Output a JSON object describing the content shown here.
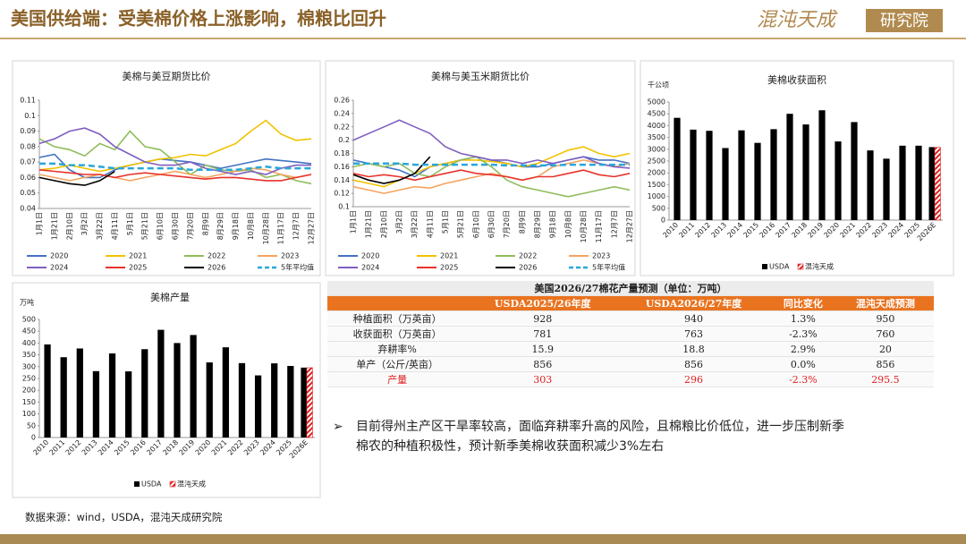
{
  "header": {
    "title": "美国供给端：受美棉价格上涨影响，棉粮比回升",
    "logo": "混沌天成",
    "logo_tag": "研究院"
  },
  "chart_data": [
    {
      "type": "line",
      "title": "美棉与美豆期货比价",
      "categories": [
        "1月1日",
        "1月21日",
        "2月10日",
        "3月2日",
        "3月22日",
        "4月11日",
        "5月1日",
        "5月21日",
        "6月10日",
        "6月30日",
        "7月20日",
        "8月9日",
        "8月29日",
        "9月18日",
        "10月8日",
        "10月28日",
        "11月17日",
        "12月7日",
        "12月27日"
      ],
      "ylim": [
        0.04,
        0.11
      ],
      "yticks": [
        0.04,
        0.05,
        0.06,
        0.07,
        0.08,
        0.09,
        0.1,
        0.11
      ],
      "series": [
        {
          "name": "2020",
          "color": "#4472c4",
          "values": [
            0.073,
            0.075,
            0.065,
            0.06,
            0.06,
            0.065,
            0.068,
            0.07,
            0.072,
            0.071,
            0.07,
            0.068,
            0.066,
            0.068,
            0.07,
            0.072,
            0.071,
            0.07,
            0.069
          ]
        },
        {
          "name": "2021",
          "color": "#f2c200",
          "values": [
            0.065,
            0.066,
            0.068,
            0.066,
            0.064,
            0.066,
            0.068,
            0.07,
            0.072,
            0.073,
            0.075,
            0.074,
            0.078,
            0.082,
            0.09,
            0.097,
            0.088,
            0.084,
            0.085
          ]
        },
        {
          "name": "2022",
          "color": "#8fbc5a",
          "values": [
            0.085,
            0.08,
            0.078,
            0.074,
            0.082,
            0.078,
            0.09,
            0.08,
            0.078,
            0.07,
            0.062,
            0.068,
            0.065,
            0.064,
            0.065,
            0.06,
            0.062,
            0.058,
            0.056
          ]
        },
        {
          "name": "2023",
          "color": "#f4a460",
          "values": [
            0.062,
            0.06,
            0.058,
            0.06,
            0.062,
            0.06,
            0.058,
            0.06,
            0.062,
            0.064,
            0.062,
            0.06,
            0.062,
            0.064,
            0.066,
            0.065,
            0.062,
            0.06,
            0.062
          ]
        },
        {
          "name": "2024",
          "color": "#7f5fbf",
          "values": [
            0.082,
            0.085,
            0.09,
            0.092,
            0.088,
            0.08,
            0.075,
            0.07,
            0.068,
            0.068,
            0.07,
            0.066,
            0.064,
            0.062,
            0.064,
            0.062,
            0.066,
            0.068,
            0.068
          ]
        },
        {
          "name": "2025",
          "color": "#e8322b",
          "values": [
            0.065,
            0.064,
            0.063,
            0.062,
            0.062,
            0.06,
            0.062,
            0.063,
            0.062,
            0.061,
            0.06,
            0.059,
            0.06,
            0.06,
            0.059,
            0.058,
            0.058,
            0.06,
            0.062
          ]
        },
        {
          "name": "2026",
          "color": "#000000",
          "values": [
            0.06,
            0.058,
            0.056,
            0.055,
            0.058,
            0.064,
            null,
            null,
            null,
            null,
            null,
            null,
            null,
            null,
            null,
            null,
            null,
            null,
            null
          ]
        },
        {
          "name": "5年平均值",
          "color": "#2aa6d9",
          "dashed": true,
          "values": [
            0.069,
            0.069,
            0.068,
            0.068,
            0.067,
            0.066,
            0.066,
            0.066,
            0.066,
            0.066,
            0.065,
            0.065,
            0.065,
            0.065,
            0.066,
            0.067,
            0.066,
            0.066,
            0.066
          ]
        }
      ]
    },
    {
      "type": "line",
      "title": "美棉与美玉米期货比价",
      "categories": [
        "1月1日",
        "1月21日",
        "2月10日",
        "3月2日",
        "3月22日",
        "4月11日",
        "5月1日",
        "5月21日",
        "6月10日",
        "6月30日",
        "7月20日",
        "8月9日",
        "8月29日",
        "9月18日",
        "10月8日",
        "10月28日",
        "11月17日",
        "12月7日",
        "12月27日"
      ],
      "ylim": [
        0.1,
        0.26
      ],
      "yticks": [
        0.1,
        0.12,
        0.14,
        0.16,
        0.18,
        0.2,
        0.22,
        0.24,
        0.26
      ],
      "series": [
        {
          "name": "2020",
          "color": "#4472c4",
          "values": [
            0.17,
            0.165,
            0.16,
            0.155,
            0.145,
            0.16,
            0.165,
            0.17,
            0.175,
            0.17,
            0.165,
            0.16,
            0.16,
            0.165,
            0.17,
            0.175,
            0.17,
            0.17,
            0.165
          ]
        },
        {
          "name": "2021",
          "color": "#f2c200",
          "values": [
            0.14,
            0.135,
            0.13,
            0.14,
            0.15,
            0.16,
            0.165,
            0.17,
            0.17,
            0.168,
            0.165,
            0.16,
            0.165,
            0.175,
            0.185,
            0.19,
            0.18,
            0.175,
            0.18
          ]
        },
        {
          "name": "2022",
          "color": "#8fbc5a",
          "values": [
            0.16,
            0.165,
            0.16,
            0.165,
            0.15,
            0.145,
            0.16,
            0.17,
            0.175,
            0.16,
            0.14,
            0.13,
            0.125,
            0.12,
            0.115,
            0.12,
            0.125,
            0.13,
            0.125
          ]
        },
        {
          "name": "2023",
          "color": "#f4a460",
          "values": [
            0.13,
            0.125,
            0.12,
            0.125,
            0.13,
            0.128,
            0.135,
            0.14,
            0.145,
            0.15,
            0.145,
            0.14,
            0.145,
            0.16,
            0.165,
            0.17,
            0.165,
            0.16,
            0.165
          ]
        },
        {
          "name": "2024",
          "color": "#7f5fbf",
          "values": [
            0.2,
            0.21,
            0.22,
            0.23,
            0.22,
            0.21,
            0.19,
            0.18,
            0.175,
            0.17,
            0.17,
            0.165,
            0.17,
            0.165,
            0.17,
            0.175,
            0.165,
            0.16,
            0.158
          ]
        },
        {
          "name": "2025",
          "color": "#e8322b",
          "values": [
            0.15,
            0.145,
            0.148,
            0.145,
            0.14,
            0.145,
            0.15,
            0.155,
            0.15,
            0.148,
            0.145,
            0.14,
            0.145,
            0.145,
            0.15,
            0.155,
            0.148,
            0.145,
            0.15
          ]
        },
        {
          "name": "2026",
          "color": "#000000",
          "values": [
            0.148,
            0.14,
            0.135,
            0.14,
            0.15,
            0.175,
            null,
            null,
            null,
            null,
            null,
            null,
            null,
            null,
            null,
            null,
            null,
            null,
            null
          ]
        },
        {
          "name": "5年平均值",
          "color": "#2aa6d9",
          "dashed": true,
          "values": [
            0.165,
            0.165,
            0.165,
            0.165,
            0.163,
            0.163,
            0.163,
            0.163,
            0.163,
            0.163,
            0.162,
            0.162,
            0.162,
            0.162,
            0.163,
            0.163,
            0.163,
            0.163,
            0.163
          ]
        }
      ]
    },
    {
      "type": "bar",
      "title": "美棉收获面积",
      "y_axis_label": "千公顷",
      "categories": [
        "2010",
        "2011",
        "2012",
        "2013",
        "2014",
        "2015",
        "2016",
        "2017",
        "2018",
        "2019",
        "2020",
        "2021",
        "2022",
        "2023",
        "2024",
        "2025",
        "2026E"
      ],
      "ylim": [
        0,
        5000
      ],
      "yticks": [
        0,
        500,
        1000,
        1500,
        2000,
        2500,
        3000,
        3500,
        4000,
        4500,
        5000
      ],
      "series": [
        {
          "name": "USDA",
          "color": "#000000",
          "values": [
            4330,
            3830,
            3780,
            3050,
            3800,
            3270,
            3850,
            4500,
            4050,
            4650,
            3330,
            4150,
            2950,
            2600,
            3150,
            3150,
            3090
          ]
        },
        {
          "name": "混沌天成",
          "color": "#e02020",
          "pattern": "hatch",
          "values": [
            null,
            null,
            null,
            null,
            null,
            null,
            null,
            null,
            null,
            null,
            null,
            null,
            null,
            null,
            null,
            null,
            3080
          ]
        }
      ]
    },
    {
      "type": "bar",
      "title": "美棉产量",
      "y_axis_label": "万吨",
      "categories": [
        "2010",
        "2011",
        "2012",
        "2013",
        "2014",
        "2015",
        "2016",
        "2017",
        "2018",
        "2019",
        "2020",
        "2021",
        "2022",
        "2023",
        "2024",
        "2025",
        "2026E"
      ],
      "ylim": [
        0,
        500
      ],
      "yticks": [
        0,
        50,
        100,
        150,
        200,
        250,
        300,
        350,
        400,
        450,
        500
      ],
      "series": [
        {
          "name": "USDA",
          "color": "#000000",
          "values": [
            394,
            340,
            377,
            281,
            356,
            280,
            374,
            456,
            400,
            434,
            318,
            382,
            315,
            263,
            314,
            303,
            296
          ]
        },
        {
          "name": "混沌天成",
          "color": "#e02020",
          "pattern": "hatch",
          "values": [
            null,
            null,
            null,
            null,
            null,
            null,
            null,
            null,
            null,
            null,
            null,
            null,
            null,
            null,
            null,
            null,
            295.5
          ]
        }
      ]
    }
  ],
  "table": {
    "title": "美国2026/27棉花产量预测（单位：万吨）",
    "header": [
      "USDA2025/26年度",
      "USDA2026/27年度",
      "同比变化",
      "混沌天成预测"
    ],
    "rows": [
      [
        "种植面积（万英亩）",
        "928",
        "940",
        "1.3%",
        "950"
      ],
      [
        "收获面积（万英亩）",
        "781",
        "763",
        "-2.3%",
        "760"
      ],
      [
        "弃耕率%",
        "15.9",
        "18.8",
        "2.9%",
        "20"
      ],
      [
        "单产（公斤/英亩）",
        "856",
        "856",
        "0.0%",
        "856"
      ],
      [
        "产量",
        "303",
        "296",
        "-2.3%",
        "295.5"
      ]
    ]
  },
  "bullet": "目前得州主产区干旱率较高，面临弃耕率升高的风险，且棉粮比价低位，进一步压制新季棉农的种植积极性，预计新季美棉收获面积减少3%左右",
  "source": "数据来源：wind，USDA，混沌天成研究院"
}
